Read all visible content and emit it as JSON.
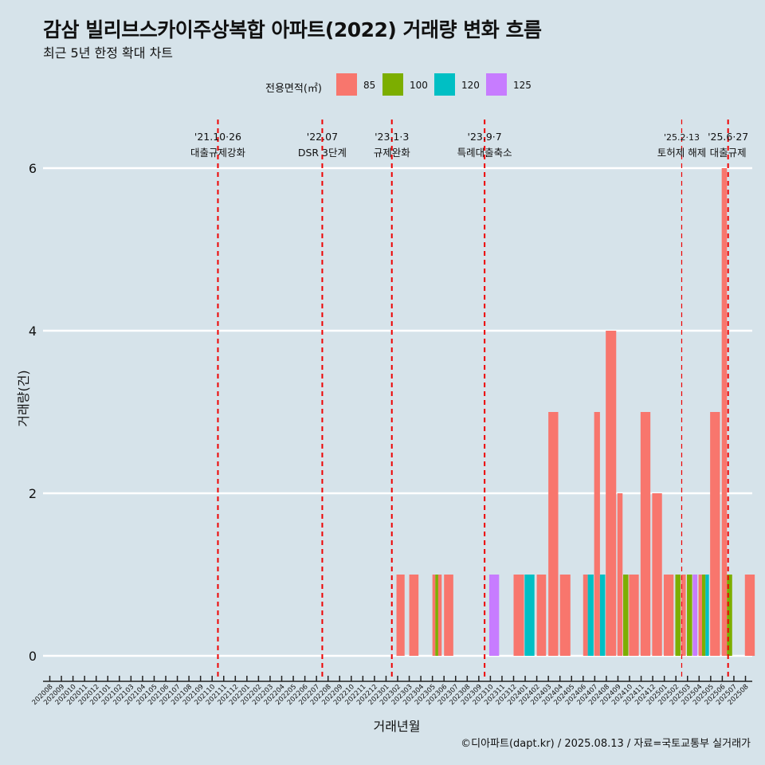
{
  "header": {
    "title": "감삼 빌리브스카이주상복합 아파트(2022) 거래량 변화 흐름",
    "subtitle": "최근 5년 한정 확대 차트"
  },
  "legend": {
    "title": "전용면적(㎡)",
    "items": [
      {
        "label": "85",
        "color": "#F8766D"
      },
      {
        "label": "100",
        "color": "#7CAE00"
      },
      {
        "label": "120",
        "color": "#00BFC4"
      },
      {
        "label": "125",
        "color": "#C77CFF"
      }
    ]
  },
  "caption": "©디아파트(dapt.kr) / 2025.08.13 / 자료=국토교통부 실거래가",
  "chart_data": {
    "type": "bar",
    "stacked": true,
    "xlabel": "거래년월",
    "ylabel": "거래량(건)",
    "ylim": [
      0,
      6
    ],
    "yticks": [
      0,
      2,
      4,
      6
    ],
    "categories": [
      "202008",
      "202009",
      "202010",
      "202011",
      "202012",
      "202101",
      "202102",
      "202103",
      "202104",
      "202105",
      "202106",
      "202107",
      "202108",
      "202109",
      "202110",
      "202111",
      "202112",
      "202201",
      "202202",
      "202203",
      "202204",
      "202205",
      "202206",
      "202207",
      "202208",
      "202209",
      "202210",
      "202211",
      "202212",
      "202301",
      "202302",
      "202303",
      "202304",
      "202305",
      "202306",
      "202307",
      "202308",
      "202309",
      "202310",
      "202311",
      "202312",
      "202401",
      "202402",
      "202403",
      "202404",
      "202405",
      "202406",
      "202407",
      "202408",
      "202409",
      "202410",
      "202411",
      "202412",
      "202501",
      "202502",
      "202503",
      "202504",
      "202505",
      "202506",
      "202507",
      "202508"
    ],
    "bars": [
      {
        "x": 29.9,
        "w": 0.7,
        "segments": [
          {
            "series": "85",
            "value": 1
          }
        ]
      },
      {
        "x": 31.0,
        "w": 0.8,
        "segments": [
          {
            "series": "85",
            "value": 1
          }
        ]
      },
      {
        "x": 33.0,
        "w": 0.25,
        "segments": [
          {
            "series": "85",
            "value": 1
          }
        ]
      },
      {
        "x": 33.25,
        "w": 0.25,
        "segments": [
          {
            "series": "100",
            "value": 1
          }
        ]
      },
      {
        "x": 33.5,
        "w": 0.3,
        "segments": [
          {
            "series": "85",
            "value": 1
          }
        ]
      },
      {
        "x": 34.0,
        "w": 0.8,
        "segments": [
          {
            "series": "85",
            "value": 1
          }
        ]
      },
      {
        "x": 37.9,
        "w": 0.85,
        "segments": [
          {
            "series": "125",
            "value": 1
          }
        ]
      },
      {
        "x": 40.0,
        "w": 0.9,
        "segments": [
          {
            "series": "85",
            "value": 1
          }
        ]
      },
      {
        "x": 40.95,
        "w": 0.85,
        "segments": [
          {
            "series": "120",
            "value": 1
          }
        ]
      },
      {
        "x": 42.0,
        "w": 0.8,
        "segments": [
          {
            "series": "85",
            "value": 1
          }
        ]
      },
      {
        "x": 43.0,
        "w": 0.85,
        "segments": [
          {
            "series": "85",
            "value": 3
          }
        ]
      },
      {
        "x": 44.0,
        "w": 0.9,
        "segments": [
          {
            "series": "85",
            "value": 1
          }
        ]
      },
      {
        "x": 46.0,
        "w": 0.4,
        "segments": [
          {
            "series": "85",
            "value": 1
          }
        ]
      },
      {
        "x": 46.4,
        "w": 0.5,
        "segments": [
          {
            "series": "120",
            "value": 1
          }
        ]
      },
      {
        "x": 46.95,
        "w": 0.5,
        "segments": [
          {
            "series": "85",
            "value": 3
          }
        ]
      },
      {
        "x": 47.45,
        "w": 0.45,
        "segments": [
          {
            "series": "120",
            "value": 1
          }
        ]
      },
      {
        "x": 47.95,
        "w": 0.9,
        "segments": [
          {
            "series": "85",
            "value": 4
          }
        ]
      },
      {
        "x": 48.95,
        "w": 0.45,
        "segments": [
          {
            "series": "85",
            "value": 2
          }
        ]
      },
      {
        "x": 49.45,
        "w": 0.45,
        "segments": [
          {
            "series": "100",
            "value": 1
          }
        ]
      },
      {
        "x": 49.95,
        "w": 0.85,
        "segments": [
          {
            "series": "85",
            "value": 1
          }
        ]
      },
      {
        "x": 50.95,
        "w": 0.85,
        "segments": [
          {
            "series": "85",
            "value": 3
          }
        ]
      },
      {
        "x": 51.95,
        "w": 0.85,
        "segments": [
          {
            "series": "85",
            "value": 2
          }
        ]
      },
      {
        "x": 52.95,
        "w": 0.85,
        "segments": [
          {
            "series": "85",
            "value": 1
          }
        ]
      },
      {
        "x": 53.95,
        "w": 0.45,
        "segments": [
          {
            "series": "100",
            "value": 1
          }
        ]
      },
      {
        "x": 54.45,
        "w": 0.4,
        "segments": [
          {
            "series": "85",
            "value": 1
          }
        ]
      },
      {
        "x": 54.95,
        "w": 0.45,
        "segments": [
          {
            "series": "100",
            "value": 1
          }
        ]
      },
      {
        "x": 55.45,
        "w": 0.4,
        "segments": [
          {
            "series": "125",
            "value": 1
          }
        ]
      },
      {
        "x": 55.95,
        "w": 0.3,
        "segments": [
          {
            "series": "85",
            "value": 1
          }
        ]
      },
      {
        "x": 56.25,
        "w": 0.3,
        "segments": [
          {
            "series": "100",
            "value": 1
          }
        ]
      },
      {
        "x": 56.55,
        "w": 0.3,
        "segments": [
          {
            "series": "120",
            "value": 1
          }
        ]
      },
      {
        "x": 56.95,
        "w": 0.85,
        "segments": [
          {
            "series": "85",
            "value": 3
          }
        ]
      },
      {
        "x": 57.95,
        "w": 0.45,
        "segments": [
          {
            "series": "85",
            "value": 6
          }
        ]
      },
      {
        "x": 58.4,
        "w": 0.45,
        "segments": [
          {
            "series": "100",
            "value": 1
          }
        ]
      },
      {
        "x": 59.95,
        "w": 0.85,
        "segments": [
          {
            "series": "85",
            "value": 1
          }
        ]
      }
    ],
    "events": [
      {
        "x": 14.5,
        "date": "'21.10·26",
        "label": "대출규제강화",
        "style": "dashed-bold"
      },
      {
        "x": 23.5,
        "date": "'22.07",
        "label": "DSR 3단계",
        "style": "dashed-bold"
      },
      {
        "x": 29.5,
        "date": "'23.1·3",
        "label": "규제완화",
        "style": "dashed-bold"
      },
      {
        "x": 37.5,
        "date": "'23.9·7",
        "label": "특례대출축소",
        "style": "dashed-bold"
      },
      {
        "x": 54.5,
        "date": "'25.2·13",
        "label": "토허제 해제",
        "style": "dashed-thin"
      },
      {
        "x": 58.5,
        "date": "'25.6·27",
        "label": "대출규제",
        "style": "dashed-bold"
      }
    ],
    "grid": true,
    "legend_position": "top"
  }
}
